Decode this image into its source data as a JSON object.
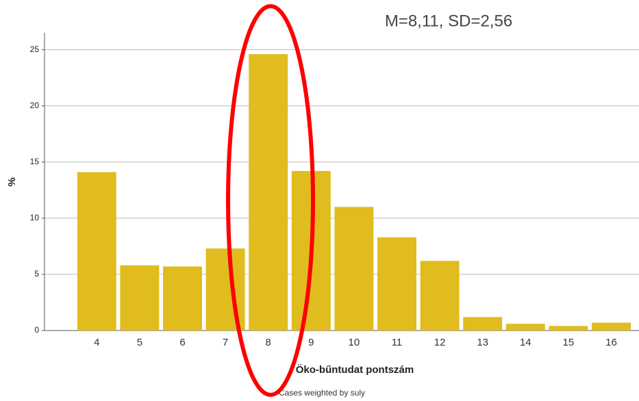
{
  "chart_data": {
    "type": "bar",
    "annotation": "M=8,11, SD=2,56",
    "x_label": "Öko-bűntudat pontszám",
    "y_label": "%",
    "footnote": "Cases weighted by suly",
    "categories": [
      "4",
      "5",
      "6",
      "7",
      "8",
      "9",
      "10",
      "11",
      "12",
      "13",
      "14",
      "15",
      "16"
    ],
    "values": [
      14.1,
      5.8,
      5.7,
      7.3,
      24.6,
      14.2,
      11.0,
      8.3,
      6.2,
      1.2,
      0.6,
      0.4,
      0.7
    ],
    "color": "#e0bc1f",
    "ylim": [
      0,
      26.5
    ],
    "yticks": [
      0,
      5,
      10,
      15,
      20,
      25
    ],
    "grid": true
  }
}
